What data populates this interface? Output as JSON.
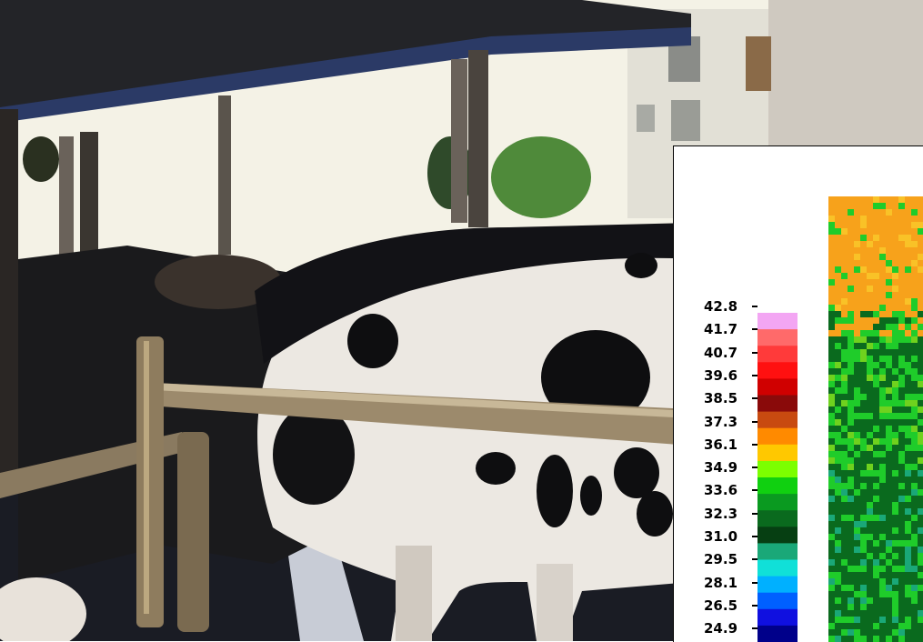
{
  "colors": {
    "thermal_orange": "#f7a21b",
    "thermal_green": "#1fcc2a",
    "thermal_dark_green": "#0a6a1e",
    "photo_sky": "#f4f2e6",
    "cow_white": "#ece8e2"
  },
  "scale": {
    "labels": [
      "42.8",
      "41.7",
      "40.7",
      "39.6",
      "38.5",
      "37.3",
      "36.1",
      "34.9",
      "33.6",
      "32.3",
      "31.0",
      "29.5",
      "28.1",
      "26.5",
      "24.9"
    ],
    "colors": [
      "#f3a6f3",
      "#ff6a6a",
      "#ff3a3a",
      "#ff1010",
      "#d00000",
      "#8a0a0a",
      "#c84a10",
      "#ff8a00",
      "#ffc800",
      "#7cff00",
      "#10d010",
      "#0a9a20",
      "#0a6a1e",
      "#063f12",
      "#1aa878",
      "#10e0d8",
      "#00b0ff",
      "#0060ff",
      "#1010e0",
      "#00008a"
    ]
  }
}
